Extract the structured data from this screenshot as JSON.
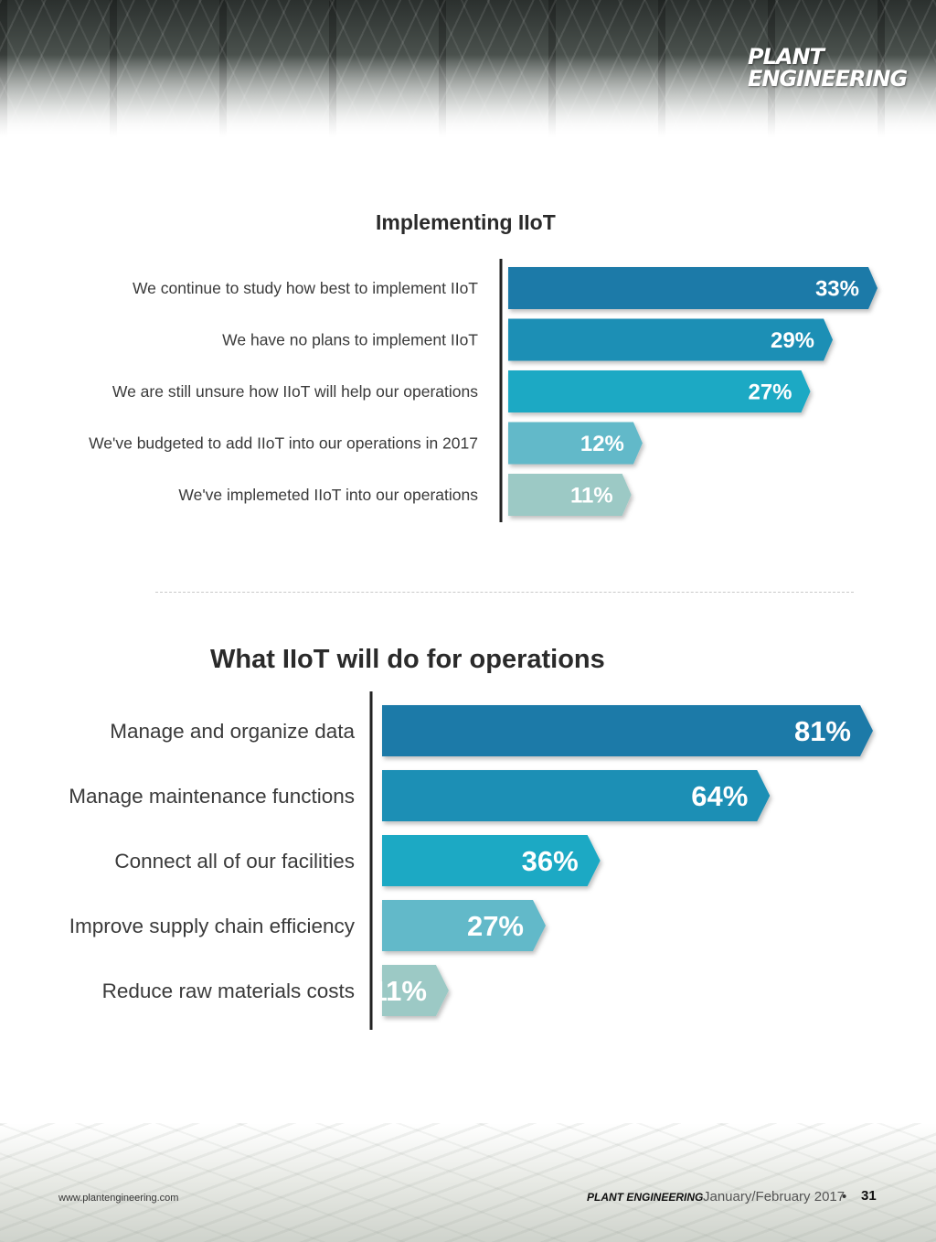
{
  "header": {
    "logo_line1": "PLANT",
    "logo_line2": "ENGINEERING"
  },
  "chart_data": [
    {
      "type": "bar",
      "orientation": "horizontal",
      "title": "Implementing IIoT",
      "categories": [
        "We continue to study how best to implement IIoT",
        "We have no plans to implement IIoT",
        "We are still unsure how IIoT will help our operations",
        "We've budgeted to add IIoT into our operations in 2017",
        "We've implemeted IIoT into our operations"
      ],
      "values": [
        33,
        29,
        27,
        12,
        11
      ],
      "value_labels": [
        "33%",
        "29%",
        "27%",
        "12%",
        "11%"
      ],
      "colors": [
        "#1a7aa8",
        "#1b8fb5",
        "#1fa9c4",
        "#62b9c9",
        "#9cc9c5"
      ],
      "grid": false,
      "legend": "none"
    },
    {
      "type": "bar",
      "orientation": "horizontal",
      "title": "What IIoT will do for operations",
      "categories": [
        "Manage and organize data",
        "Manage maintenance functions",
        "Connect all of our facilities",
        "Improve supply chain efficiency",
        "Reduce raw materials costs"
      ],
      "values": [
        81,
        64,
        36,
        27,
        11
      ],
      "value_labels": [
        "81%",
        "64%",
        "36%",
        "27%",
        "11%"
      ],
      "colors": [
        "#1a7aa8",
        "#1b8fb5",
        "#1fa9c4",
        "#62b9c9",
        "#9cc9c5"
      ],
      "grid": false,
      "legend": "none"
    }
  ],
  "footer": {
    "url": "www.plantengineering.com",
    "magazine": "PLANT ENGINEERING",
    "date": "January/February 2017",
    "separator": "•",
    "page": "31"
  }
}
